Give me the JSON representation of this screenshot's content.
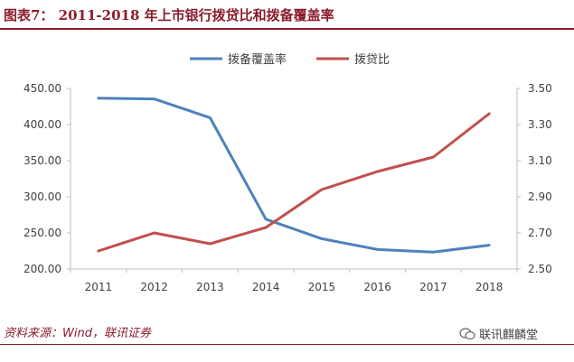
{
  "header": {
    "title": "图表7：  2011-2018 年上市银行拨贷比和拨备覆盖率"
  },
  "footer": {
    "source": "资料来源：Wind，联讯证券",
    "watermark": "联讯麒麟堂"
  },
  "chart_data": {
    "type": "line",
    "categories": [
      "2011",
      "2012",
      "2013",
      "2014",
      "2015",
      "2016",
      "2017",
      "2018"
    ],
    "series": [
      {
        "name": "拨备覆盖率",
        "axis": "left",
        "color": "#4f81bd",
        "values": [
          436.5,
          435.5,
          409.5,
          269.0,
          242.0,
          227.0,
          223.5,
          233.0
        ]
      },
      {
        "name": "拨贷比",
        "axis": "right",
        "color": "#c0504d",
        "values": [
          2.6,
          2.7,
          2.64,
          2.73,
          2.94,
          3.04,
          3.12,
          3.36
        ]
      }
    ],
    "y_left": {
      "min": 200,
      "max": 450,
      "ticks": [
        "450.00",
        "400.00",
        "350.00",
        "300.00",
        "250.00",
        "200.00"
      ]
    },
    "y_right": {
      "min": 2.5,
      "max": 3.5,
      "ticks": [
        "3.50",
        "3.30",
        "3.10",
        "2.90",
        "2.70",
        "2.50"
      ]
    },
    "legend": "top-center",
    "grid": false
  }
}
